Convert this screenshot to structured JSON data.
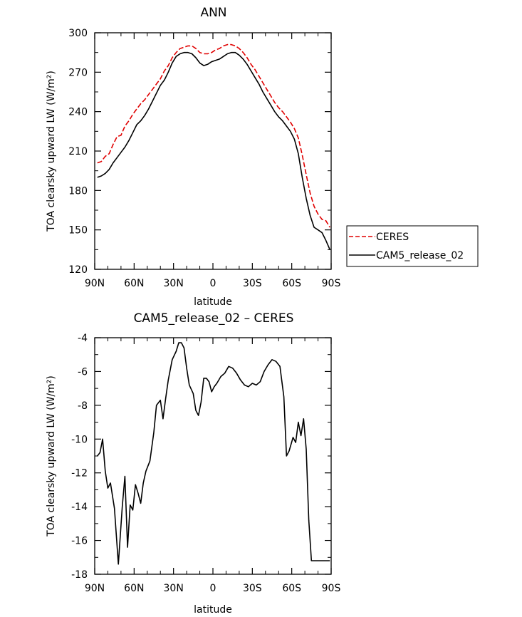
{
  "chart_data": [
    {
      "type": "line",
      "title": "ANN",
      "xlabel": "latitude",
      "ylabel": "TOA clearsky upward LW (W/m²)",
      "x_ticks": [
        "90N",
        "60N",
        "30N",
        "0",
        "30S",
        "60S",
        "90S"
      ],
      "y_ticks": [
        "120",
        "150",
        "180",
        "210",
        "240",
        "270",
        "300"
      ],
      "xlim": [
        -90,
        90
      ],
      "ylim": [
        120,
        300
      ],
      "legend": "outside-right",
      "series": [
        {
          "name": "CERES",
          "color": "#e00000",
          "dash": "dashed",
          "x": [
            -88,
            -85,
            -82,
            -79,
            -76,
            -73,
            -70,
            -67,
            -64,
            -61,
            -58,
            -55,
            -52,
            -49,
            -46,
            -43,
            -40,
            -37,
            -34,
            -31,
            -28,
            -25,
            -22,
            -19,
            -16,
            -13,
            -10,
            -7,
            -4,
            -1,
            2,
            5,
            8,
            11,
            14,
            17,
            20,
            23,
            26,
            29,
            32,
            35,
            38,
            41,
            44,
            47,
            50,
            53,
            56,
            59,
            62,
            65,
            68,
            71,
            74,
            77,
            80,
            83,
            86,
            89
          ],
          "values": [
            201,
            202,
            206,
            208,
            215,
            221,
            222,
            229,
            233,
            238,
            242,
            246,
            249,
            253,
            257,
            261,
            265,
            271,
            275,
            281,
            285,
            288,
            289,
            290,
            290,
            288,
            285,
            284,
            284,
            285,
            287,
            288,
            290,
            291,
            291,
            290,
            288,
            285,
            281,
            276,
            272,
            267,
            262,
            257,
            252,
            247,
            243,
            240,
            236,
            232,
            227,
            220,
            207,
            192,
            178,
            168,
            162,
            158,
            157,
            152
          ]
        },
        {
          "name": "CAM5_release_02",
          "color": "#000000",
          "dash": "solid",
          "x": [
            -88,
            -85,
            -82,
            -79,
            -76,
            -73,
            -70,
            -67,
            -64,
            -61,
            -58,
            -55,
            -52,
            -49,
            -46,
            -43,
            -40,
            -37,
            -34,
            -31,
            -28,
            -25,
            -22,
            -19,
            -16,
            -13,
            -10,
            -7,
            -4,
            -1,
            2,
            5,
            8,
            11,
            14,
            17,
            20,
            23,
            26,
            29,
            32,
            35,
            38,
            41,
            44,
            47,
            50,
            53,
            56,
            59,
            62,
            65,
            68,
            71,
            74,
            77,
            80,
            83,
            86,
            89
          ],
          "values": [
            190,
            191,
            193,
            196,
            201,
            205,
            209,
            213,
            218,
            224,
            230,
            233,
            237,
            242,
            248,
            254,
            260,
            264,
            270,
            277,
            282,
            284,
            285,
            285,
            284,
            281,
            277,
            275,
            276,
            278,
            279,
            280,
            282,
            284,
            285,
            285,
            283,
            280,
            276,
            271,
            266,
            261,
            255,
            250,
            245,
            240,
            236,
            233,
            229,
            225,
            219,
            208,
            190,
            174,
            161,
            152,
            150,
            148,
            142,
            135
          ]
        }
      ]
    },
    {
      "type": "line",
      "title": "CAM5_release_02 – CERES",
      "xlabel": "latitude",
      "ylabel": "TOA clearsky upward LW (W/m²)",
      "x_ticks": [
        "90N",
        "60N",
        "30N",
        "0",
        "30S",
        "60S",
        "90S"
      ],
      "y_ticks": [
        "-18",
        "-16",
        "-14",
        "-12",
        "-10",
        "-8",
        "-6",
        "-4"
      ],
      "xlim": [
        -90,
        90
      ],
      "ylim": [
        -18,
        -4
      ],
      "series": [
        {
          "color": "#000000",
          "dash": "solid",
          "x": [
            -88,
            -86,
            -84,
            -82,
            -80,
            -78,
            -75,
            -72,
            -69,
            -67,
            -65,
            -63,
            -61,
            -59,
            -57,
            -55,
            -53,
            -51,
            -48,
            -45,
            -43,
            -40,
            -38,
            -36,
            -34,
            -31,
            -28,
            -26,
            -24,
            -22,
            -20,
            -18,
            -15,
            -13,
            -11,
            -9,
            -7,
            -5,
            -3,
            -1,
            1,
            3,
            6,
            9,
            12,
            15,
            18,
            21,
            24,
            27,
            30,
            33,
            36,
            39,
            42,
            45,
            48,
            51,
            54,
            56,
            58,
            61,
            63,
            65,
            67,
            69,
            71,
            73,
            75,
            77,
            79,
            81,
            83,
            85,
            87,
            89
          ],
          "values": [
            -11.0,
            -10.8,
            -10.0,
            -11.9,
            -12.9,
            -12.6,
            -14.1,
            -17.4,
            -14.0,
            -12.2,
            -16.4,
            -13.9,
            -14.2,
            -12.7,
            -13.2,
            -13.8,
            -12.6,
            -11.9,
            -11.3,
            -9.6,
            -8.0,
            -7.7,
            -8.8,
            -7.6,
            -6.5,
            -5.3,
            -4.8,
            -4.3,
            -4.3,
            -4.6,
            -5.8,
            -6.8,
            -7.3,
            -8.3,
            -8.6,
            -7.8,
            -6.4,
            -6.4,
            -6.6,
            -7.2,
            -6.9,
            -6.7,
            -6.3,
            -6.1,
            -5.7,
            -5.8,
            -6.1,
            -6.5,
            -6.8,
            -6.9,
            -6.7,
            -6.8,
            -6.6,
            -6.0,
            -5.6,
            -5.3,
            -5.4,
            -5.7,
            -7.5,
            -11.0,
            -10.7,
            -9.9,
            -10.2,
            -9.0,
            -9.8,
            -8.8,
            -10.6,
            -14.8,
            -17.2,
            -17.2,
            -17.2,
            -17.2,
            -17.2,
            -17.2,
            -17.2,
            -17.2
          ]
        }
      ]
    }
  ]
}
